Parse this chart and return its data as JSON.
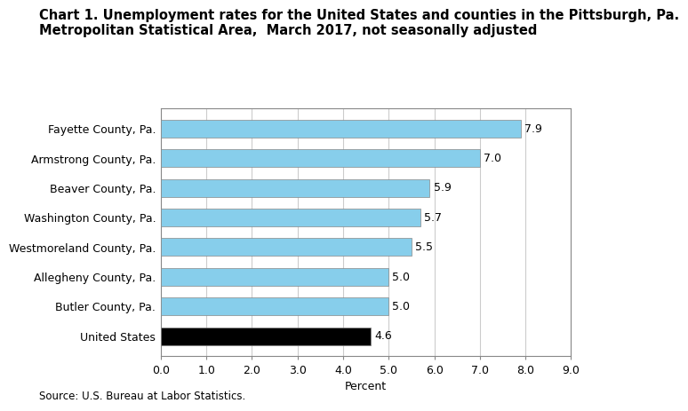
{
  "title_line1": "Chart 1. Unemployment rates for the United States and counties in the Pittsburgh, Pa.",
  "title_line2": "Metropolitan Statistical Area,  March 2017, not seasonally adjusted",
  "categories": [
    "United States",
    "Butler County, Pa.",
    "Allegheny County, Pa.",
    "Westmoreland County, Pa.",
    "Washington County, Pa.",
    "Beaver County, Pa.",
    "Armstrong County, Pa.",
    "Fayette County, Pa."
  ],
  "values": [
    4.6,
    5.0,
    5.0,
    5.5,
    5.7,
    5.9,
    7.0,
    7.9
  ],
  "bar_colors": [
    "#000000",
    "#87CEEB",
    "#87CEEB",
    "#87CEEB",
    "#87CEEB",
    "#87CEEB",
    "#87CEEB",
    "#87CEEB"
  ],
  "bar_edgecolor": "#888888",
  "xlabel": "Percent",
  "xlim": [
    0.0,
    9.0
  ],
  "xticks": [
    0.0,
    1.0,
    2.0,
    3.0,
    4.0,
    5.0,
    6.0,
    7.0,
    8.0,
    9.0
  ],
  "source_text": "Source: U.S. Bureau at Labor Statistics.",
  "title_fontsize": 10.5,
  "label_fontsize": 9,
  "tick_fontsize": 9,
  "value_fontsize": 9,
  "source_fontsize": 8.5,
  "bar_height": 0.6,
  "grid_color": "#cccccc",
  "background_color": "#ffffff",
  "plot_bg_color": "#ffffff",
  "spine_color": "#888888"
}
